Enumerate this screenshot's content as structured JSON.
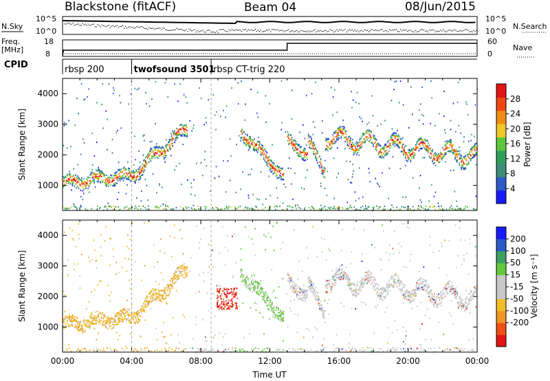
{
  "header": {
    "station": "Blackstone (fitACF)",
    "beam": "Beam 04",
    "date": "08/Jun/2015"
  },
  "summary_labels": {
    "nsky": "N.Sky",
    "nsearch": "N.Search",
    "freq": "Freq.",
    "freq_unit": "[MHz]",
    "nave": "Nave",
    "cpid": "CPID",
    "nsky_ticks": [
      "10^5",
      "10^0"
    ],
    "nsearch_ticks": [
      "10^5",
      "10^0"
    ],
    "freq_ticks": [
      "18",
      "8"
    ],
    "nave_ticks": [
      "60",
      "0"
    ]
  },
  "cpid_segments": [
    {
      "label": "rbsp 200",
      "start_h": 0.0,
      "end_h": 4.0
    },
    {
      "label": "twofsound 3501",
      "start_h": 4.0,
      "end_h": 8.6
    },
    {
      "label": "rbsp CT-trig 220",
      "start_h": 8.6,
      "end_h": 24.0
    }
  ],
  "colors": {
    "power": [
      "#1a1aff",
      "#2d5ac8",
      "#3c8c78",
      "#2ea05a",
      "#5cc83c",
      "#f0c828",
      "#f08c14",
      "#f04614",
      "#e11414"
    ],
    "velocity": [
      "#e11414",
      "#f05014",
      "#f09628",
      "#f0be28",
      "#c8c8c8",
      "#c8c8c8",
      "#64c83c",
      "#3ca064",
      "#2d5ac8",
      "#1a1aff"
    ]
  },
  "chart_data": [
    {
      "type": "heatmap",
      "title": "Power",
      "ylabel": "Slant Range [km]",
      "xlabel": "",
      "ylim": [
        180,
        4500
      ],
      "xlim": [
        0,
        24
      ],
      "yticks": [
        "1000",
        "2000",
        "3000",
        "4000"
      ],
      "colorbar_label": "Power [dB]",
      "colorbar_ticks": [
        "4",
        "8",
        "12",
        "16",
        "20",
        "24",
        "28"
      ],
      "colorbar_range": [
        0,
        32
      ]
    },
    {
      "type": "heatmap",
      "title": "Velocity",
      "ylabel": "Slant Range [km]",
      "xlabel": "Time UT",
      "ylim": [
        180,
        4500
      ],
      "xlim": [
        0,
        24
      ],
      "yticks": [
        "1000",
        "2000",
        "3000",
        "4000"
      ],
      "xticks": [
        "00:00",
        "04:00",
        "08:00",
        "12:00",
        "16:00",
        "20:00",
        "00:00"
      ],
      "colorbar_label": "Velocity [m s⁻¹]",
      "colorbar_ticks": [
        "200",
        "100",
        "50",
        "15",
        "-15",
        "-50",
        "-100",
        "-200"
      ]
    }
  ]
}
